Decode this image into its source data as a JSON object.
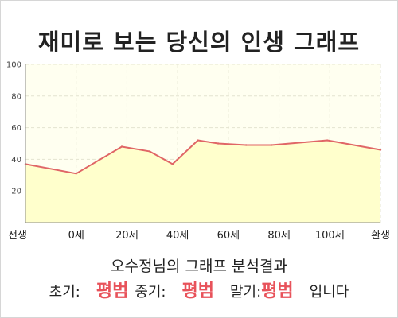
{
  "chart_data": {
    "type": "area",
    "title": "재미로 보는 당신의 인생 그래프",
    "x_labels": [
      "전생",
      "0세",
      "20세",
      "40세",
      "60세",
      "80세",
      "100세",
      "환생"
    ],
    "x": [
      -20,
      0,
      20,
      40,
      60,
      80,
      100,
      120
    ],
    "ylim": [
      0,
      100
    ],
    "y_ticks": [
      20,
      40,
      60,
      80,
      100
    ],
    "grid": true,
    "series": [
      {
        "points": [
          {
            "x": -20,
            "y": 37
          },
          {
            "x": 0,
            "y": 31
          },
          {
            "x": 18,
            "y": 48
          },
          {
            "x": 29,
            "y": 45
          },
          {
            "x": 38,
            "y": 37
          },
          {
            "x": 48,
            "y": 52
          },
          {
            "x": 56,
            "y": 50
          },
          {
            "x": 67,
            "y": 49
          },
          {
            "x": 77,
            "y": 49
          },
          {
            "x": 99,
            "y": 52
          },
          {
            "x": 120,
            "y": 46
          }
        ]
      }
    ],
    "colors": {
      "line": "#e06666",
      "fill": "#ffffcc",
      "plot_background": "#fffff0",
      "grid": "#e4e4d0",
      "axis": "#8a8a8a"
    }
  },
  "summary": {
    "title": "오수정님의 그래프 분석결과",
    "early_label": "초기:",
    "early_value": "평범",
    "mid_label": "중기:",
    "mid_value": "평범",
    "late_label": "말기:",
    "late_value": "평범",
    "suffix": "입니다",
    "value_color": "#e8525a"
  }
}
